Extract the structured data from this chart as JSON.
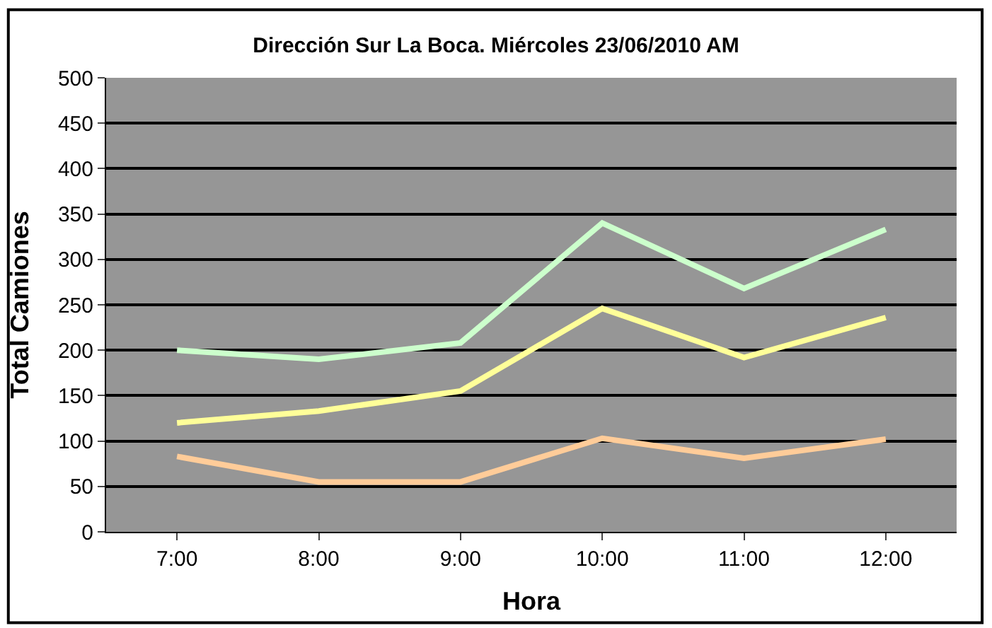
{
  "chart_data": {
    "type": "line",
    "title": "Dirección Sur La Boca. Miércoles 23/06/2010 AM",
    "xlabel": "Hora",
    "ylabel": "Total Camiones",
    "categories": [
      "7:00",
      "8:00",
      "9:00",
      "10:00",
      "11:00",
      "12:00"
    ],
    "series": [
      {
        "color": "#ccffcc",
        "values": [
          200,
          190,
          208,
          340,
          268,
          333
        ]
      },
      {
        "color": "#ffff99",
        "values": [
          120,
          133,
          155,
          246,
          192,
          236
        ]
      },
      {
        "color": "#ffcc99",
        "values": [
          83,
          55,
          55,
          103,
          81,
          102
        ]
      }
    ],
    "ylim": [
      0,
      500
    ],
    "yticks": [
      0,
      50,
      100,
      150,
      200,
      250,
      300,
      350,
      400,
      450,
      500
    ],
    "grid": "y",
    "legend": false,
    "marker": "none",
    "line_style": "solid"
  }
}
